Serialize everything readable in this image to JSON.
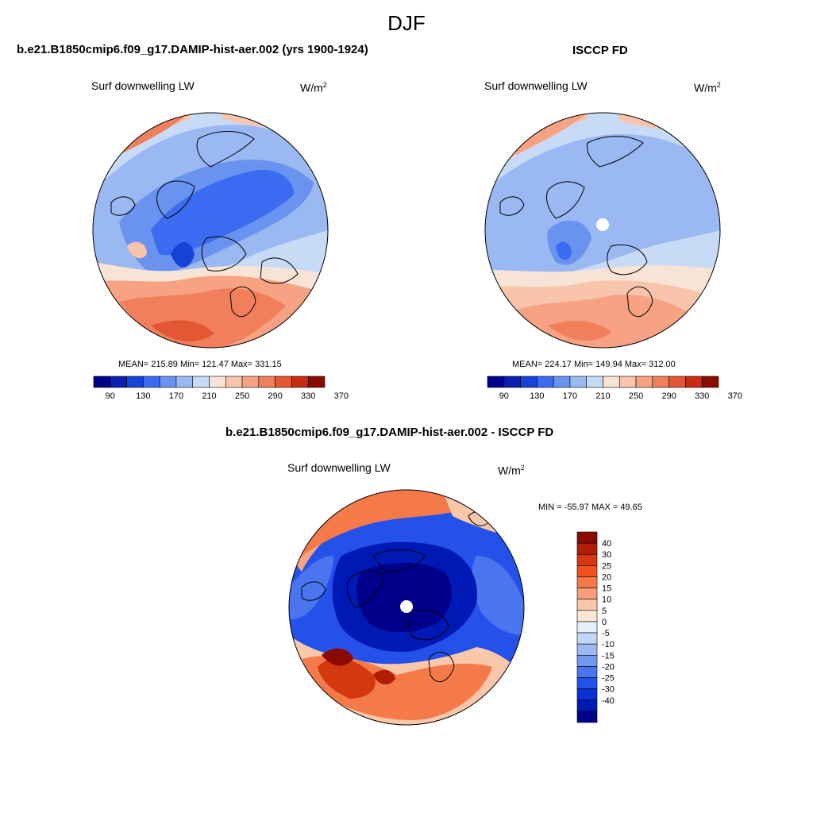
{
  "figure": {
    "season": "DJF",
    "panels": [
      {
        "id": "model",
        "title": "b.e21.B1850cmip6.f09_g17.DAMIP-hist-aer.002 (yrs 1900-1924)",
        "variable": "Surf downwelling LW",
        "units": "W/m",
        "units_exp": "2",
        "stats": "MEAN= 215.89  Min= 121.47  Max= 331.15",
        "colorbar": {
          "orientation": "horizontal",
          "colors": [
            "#00008b",
            "#0a1fb0",
            "#1742d6",
            "#3b6bf0",
            "#6a93f0",
            "#9ab8f2",
            "#c8dbf6",
            "#f8e4d6",
            "#f8c4ac",
            "#f6a283",
            "#f27f5c",
            "#e45734",
            "#c82a14",
            "#8b0a00"
          ],
          "tick_labels": [
            "90",
            "130",
            "170",
            "210",
            "250",
            "290",
            "330",
            "370"
          ]
        }
      },
      {
        "id": "obs",
        "title": "ISCCP FD",
        "variable": "Surf downwelling LW",
        "units": "W/m",
        "units_exp": "2",
        "stats": "MEAN= 224.17  Min= 149.94  Max= 312.00",
        "colorbar": {
          "orientation": "horizontal",
          "colors": [
            "#00008b",
            "#0a1fb0",
            "#1742d6",
            "#3b6bf0",
            "#6a93f0",
            "#9ab8f2",
            "#c8dbf6",
            "#f8e4d6",
            "#f8c4ac",
            "#f6a283",
            "#f27f5c",
            "#e45734",
            "#c82a14",
            "#8b0a00"
          ],
          "tick_labels": [
            "90",
            "130",
            "170",
            "210",
            "250",
            "290",
            "330",
            "370"
          ]
        }
      },
      {
        "id": "diff",
        "title": "b.e21.B1850cmip6.f09_g17.DAMIP-hist-aer.002 - ISCCP FD",
        "variable": "Surf downwelling LW",
        "units": "W/m",
        "units_exp": "2",
        "stats": "MIN = -55.97 MAX =  49.65",
        "colorbar": {
          "orientation": "vertical",
          "colors": [
            "#8b0a00",
            "#b01e05",
            "#d4380f",
            "#f0531e",
            "#f57a4a",
            "#f7a07a",
            "#f9c7aa",
            "#fce6d8",
            "#e6eefa",
            "#c4d6f6",
            "#9db9f2",
            "#7298f0",
            "#4a75ef",
            "#2451ea",
            "#0a2fd3",
            "#0018b4",
            "#00008b"
          ],
          "tick_labels": [
            "40",
            "30",
            "25",
            "20",
            "15",
            "10",
            "5",
            "0",
            "-5",
            "-10",
            "-15",
            "-20",
            "-25",
            "-30",
            "-40"
          ]
        }
      }
    ]
  }
}
